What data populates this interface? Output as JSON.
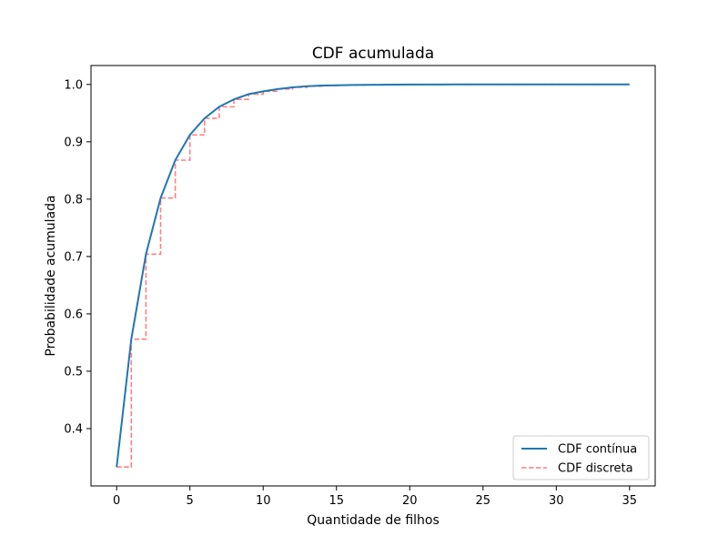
{
  "chart_data": {
    "type": "line",
    "title": "CDF acumulada",
    "xlabel": "Quantidade de filhos",
    "ylabel": "Probabilidade acumulada",
    "xlim": [
      -1.75,
      36.75
    ],
    "ylim": [
      0.3,
      1.033
    ],
    "x_ticks": [
      0,
      5,
      10,
      15,
      20,
      25,
      30,
      35
    ],
    "x_tick_labels": [
      "0",
      "5",
      "10",
      "15",
      "20",
      "25",
      "30",
      "35"
    ],
    "y_ticks": [
      0.4,
      0.5,
      0.6,
      0.7,
      0.8,
      0.9,
      1.0
    ],
    "y_tick_labels": [
      "0.4",
      "0.5",
      "0.6",
      "0.7",
      "0.8",
      "0.9",
      "1.0"
    ],
    "grid": false,
    "legend_position": "lower right",
    "x": [
      0,
      1,
      2,
      3,
      4,
      5,
      6,
      7,
      8,
      9,
      10,
      11,
      12,
      13,
      14,
      15,
      16,
      17,
      18,
      19,
      20,
      21,
      22,
      23,
      24,
      25,
      26,
      27,
      28,
      29,
      30,
      31,
      32,
      33,
      34,
      35
    ],
    "series": [
      {
        "name": "CDF contínua",
        "style": "solid",
        "color": "#1f77b4",
        "values": [
          0.333,
          0.556,
          0.704,
          0.802,
          0.868,
          0.912,
          0.941,
          0.961,
          0.974,
          0.983,
          0.988,
          0.992,
          0.995,
          0.997,
          0.998,
          0.9985,
          0.999,
          0.9993,
          0.9995,
          0.9997,
          0.9998,
          0.9999,
          0.9999,
          1.0,
          1.0,
          1.0,
          1.0,
          1.0,
          1.0,
          1.0,
          1.0,
          1.0,
          1.0,
          1.0,
          1.0,
          1.0
        ]
      },
      {
        "name": "CDF discreta",
        "style": "dashed-step",
        "color": "#ff7f7f",
        "values": [
          0.333,
          0.556,
          0.704,
          0.802,
          0.868,
          0.912,
          0.941,
          0.961,
          0.974,
          0.983,
          0.988,
          0.992,
          0.995,
          0.997,
          0.998,
          0.9985,
          0.999,
          0.9993,
          0.9995,
          0.9997,
          0.9998,
          0.9999,
          0.9999,
          1.0,
          1.0,
          1.0,
          1.0,
          1.0,
          1.0,
          1.0,
          1.0,
          1.0,
          1.0,
          1.0,
          1.0,
          1.0
        ]
      }
    ]
  }
}
